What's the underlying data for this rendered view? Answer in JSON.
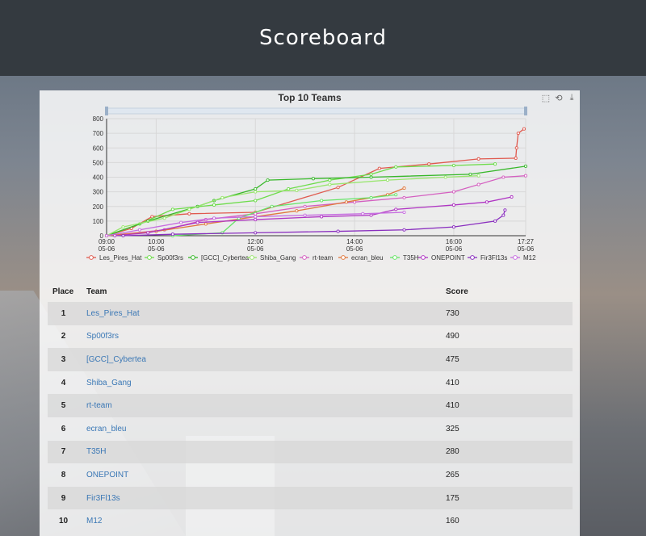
{
  "page": {
    "title": "Scoreboard"
  },
  "toolbox": [
    "zoom-icon",
    "zoom-reset-icon",
    "download-icon"
  ],
  "table": {
    "headers": {
      "place": "Place",
      "team": "Team",
      "score": "Score"
    },
    "rows": [
      {
        "place": "1",
        "team": "Les_Pires_Hat",
        "score": "730"
      },
      {
        "place": "2",
        "team": "Sp00f3rs",
        "score": "490"
      },
      {
        "place": "3",
        "team": "[GCC]_Cybertea",
        "score": "475"
      },
      {
        "place": "4",
        "team": "Shiba_Gang",
        "score": "410"
      },
      {
        "place": "5",
        "team": "rt-team",
        "score": "410"
      },
      {
        "place": "6",
        "team": "ecran_bleu",
        "score": "325"
      },
      {
        "place": "7",
        "team": "T35H",
        "score": "280"
      },
      {
        "place": "8",
        "team": "ONEPOINT",
        "score": "265"
      },
      {
        "place": "9",
        "team": "Fir3Fl13s",
        "score": "175"
      },
      {
        "place": "10",
        "team": "M12",
        "score": "160"
      }
    ]
  },
  "chart_data": {
    "type": "line",
    "title": "Top 10 Teams",
    "ylim": [
      0,
      800
    ],
    "yticks": [
      "0",
      "100",
      "200",
      "300",
      "400",
      "500",
      "600",
      "700",
      "800"
    ],
    "xlim": [
      "09:00",
      "17:27"
    ],
    "xticks": [
      {
        "t": "09:00",
        "d": "05-06"
      },
      {
        "t": "10:00",
        "d": "05-06"
      },
      {
        "t": "12:00",
        "d": "05-06"
      },
      {
        "t": "14:00",
        "d": "05-06"
      },
      {
        "t": "16:00",
        "d": "05-06"
      },
      {
        "t": "17:27",
        "d": "05-06"
      }
    ],
    "grid": true,
    "legend_position": "bottom",
    "series": [
      {
        "name": "Les_Pires_Hat",
        "color": "#e05a4f",
        "points": [
          [
            "09:00",
            0
          ],
          [
            "09:30",
            50
          ],
          [
            "09:55",
            130
          ],
          [
            "10:40",
            150
          ],
          [
            "12:00",
            160
          ],
          [
            "13:40",
            330
          ],
          [
            "14:30",
            460
          ],
          [
            "15:30",
            490
          ],
          [
            "16:30",
            525
          ],
          [
            "17:15",
            530
          ],
          [
            "17:16",
            600
          ],
          [
            "17:18",
            700
          ],
          [
            "17:25",
            730
          ]
        ]
      },
      {
        "name": "Sp00f3rs",
        "color": "#6ddc4a",
        "points": [
          [
            "09:00",
            0
          ],
          [
            "09:40",
            80
          ],
          [
            "10:20",
            180
          ],
          [
            "11:10",
            210
          ],
          [
            "12:00",
            240
          ],
          [
            "12:40",
            320
          ],
          [
            "13:30",
            380
          ],
          [
            "14:20",
            420
          ],
          [
            "14:50",
            470
          ],
          [
            "16:00",
            480
          ],
          [
            "16:50",
            490
          ]
        ]
      },
      {
        "name": "[GCC]_Cybertea",
        "color": "#38b82b",
        "points": [
          [
            "09:00",
            0
          ],
          [
            "09:50",
            100
          ],
          [
            "10:50",
            200
          ],
          [
            "11:10",
            240
          ],
          [
            "12:00",
            320
          ],
          [
            "12:15",
            380
          ],
          [
            "13:10",
            390
          ],
          [
            "14:20",
            400
          ],
          [
            "16:20",
            420
          ],
          [
            "17:27",
            475
          ]
        ]
      },
      {
        "name": "Shiba_Gang",
        "color": "#99e66e",
        "points": [
          [
            "09:00",
            0
          ],
          [
            "09:20",
            60
          ],
          [
            "10:10",
            120
          ],
          [
            "10:40",
            180
          ],
          [
            "11:20",
            260
          ],
          [
            "12:00",
            300
          ],
          [
            "12:50",
            310
          ],
          [
            "13:30",
            350
          ],
          [
            "14:40",
            380
          ],
          [
            "15:50",
            400
          ],
          [
            "16:30",
            410
          ]
        ]
      },
      {
        "name": "rt-team",
        "color": "#d45fc0",
        "points": [
          [
            "09:00",
            0
          ],
          [
            "10:10",
            40
          ],
          [
            "11:00",
            110
          ],
          [
            "12:00",
            150
          ],
          [
            "13:00",
            200
          ],
          [
            "14:00",
            230
          ],
          [
            "15:00",
            260
          ],
          [
            "16:00",
            300
          ],
          [
            "16:30",
            350
          ],
          [
            "17:00",
            400
          ],
          [
            "17:27",
            410
          ]
        ]
      },
      {
        "name": "ecran_bleu",
        "color": "#e0783e",
        "points": [
          [
            "09:00",
            0
          ],
          [
            "10:00",
            30
          ],
          [
            "11:00",
            80
          ],
          [
            "12:00",
            130
          ],
          [
            "12:50",
            170
          ],
          [
            "13:50",
            230
          ],
          [
            "14:40",
            280
          ],
          [
            "15:00",
            325
          ]
        ]
      },
      {
        "name": "T35H",
        "color": "#66e466",
        "points": [
          [
            "10:20",
            0
          ],
          [
            "11:20",
            20
          ],
          [
            "11:40",
            120
          ],
          [
            "12:20",
            200
          ],
          [
            "13:20",
            240
          ],
          [
            "14:20",
            260
          ],
          [
            "14:50",
            280
          ]
        ]
      },
      {
        "name": "ONEPOINT",
        "color": "#b036c4",
        "points": [
          [
            "09:10",
            0
          ],
          [
            "09:50",
            20
          ],
          [
            "10:50",
            90
          ],
          [
            "12:00",
            110
          ],
          [
            "13:20",
            130
          ],
          [
            "14:20",
            140
          ],
          [
            "14:50",
            180
          ],
          [
            "16:00",
            210
          ],
          [
            "16:40",
            230
          ],
          [
            "17:10",
            265
          ]
        ]
      },
      {
        "name": "Fir3Fl13s",
        "color": "#8a2fbf",
        "points": [
          [
            "09:20",
            0
          ],
          [
            "10:20",
            10
          ],
          [
            "12:00",
            20
          ],
          [
            "13:40",
            30
          ],
          [
            "15:00",
            40
          ],
          [
            "16:00",
            60
          ],
          [
            "16:50",
            100
          ],
          [
            "17:00",
            140
          ],
          [
            "17:02",
            175
          ]
        ]
      },
      {
        "name": "M12",
        "color": "#c66de0",
        "points": [
          [
            "09:00",
            0
          ],
          [
            "09:40",
            40
          ],
          [
            "10:30",
            90
          ],
          [
            "11:10",
            120
          ],
          [
            "12:00",
            130
          ],
          [
            "13:00",
            140
          ],
          [
            "14:10",
            150
          ],
          [
            "15:00",
            160
          ]
        ]
      }
    ]
  }
}
